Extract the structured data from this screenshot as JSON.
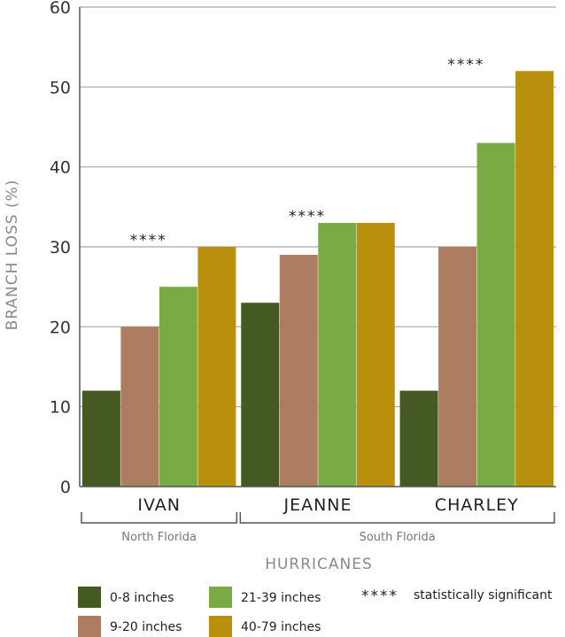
{
  "chart_data": {
    "type": "bar",
    "ylabel": "BRANCH LOSS (%)",
    "xlabel": "HURRICANES",
    "ylim": [
      0,
      60
    ],
    "yticks": [
      0,
      10,
      20,
      30,
      40,
      50,
      60
    ],
    "grid": true,
    "categories": [
      "IVAN",
      "JEANNE",
      "CHARLEY"
    ],
    "regions": [
      {
        "label": "North Florida",
        "categories": [
          "IVAN"
        ]
      },
      {
        "label": "South Florida",
        "categories": [
          "JEANNE",
          "CHARLEY"
        ]
      }
    ],
    "series": [
      {
        "name": "0-8 inches",
        "color": "#445a22",
        "values": [
          12,
          23,
          12
        ]
      },
      {
        "name": "9-20 inches",
        "color": "#ac7d60",
        "values": [
          20,
          29,
          30
        ]
      },
      {
        "name": "21-39 inches",
        "color": "#7aaa44",
        "values": [
          25,
          33,
          43
        ]
      },
      {
        "name": "40-79 inches",
        "color": "#b8900e",
        "values": [
          30,
          33,
          52
        ]
      }
    ],
    "significance": {
      "marker": "****",
      "label": "statistically significant",
      "categories": [
        "IVAN",
        "JEANNE",
        "CHARLEY"
      ]
    },
    "legend_placement": "bottom"
  }
}
